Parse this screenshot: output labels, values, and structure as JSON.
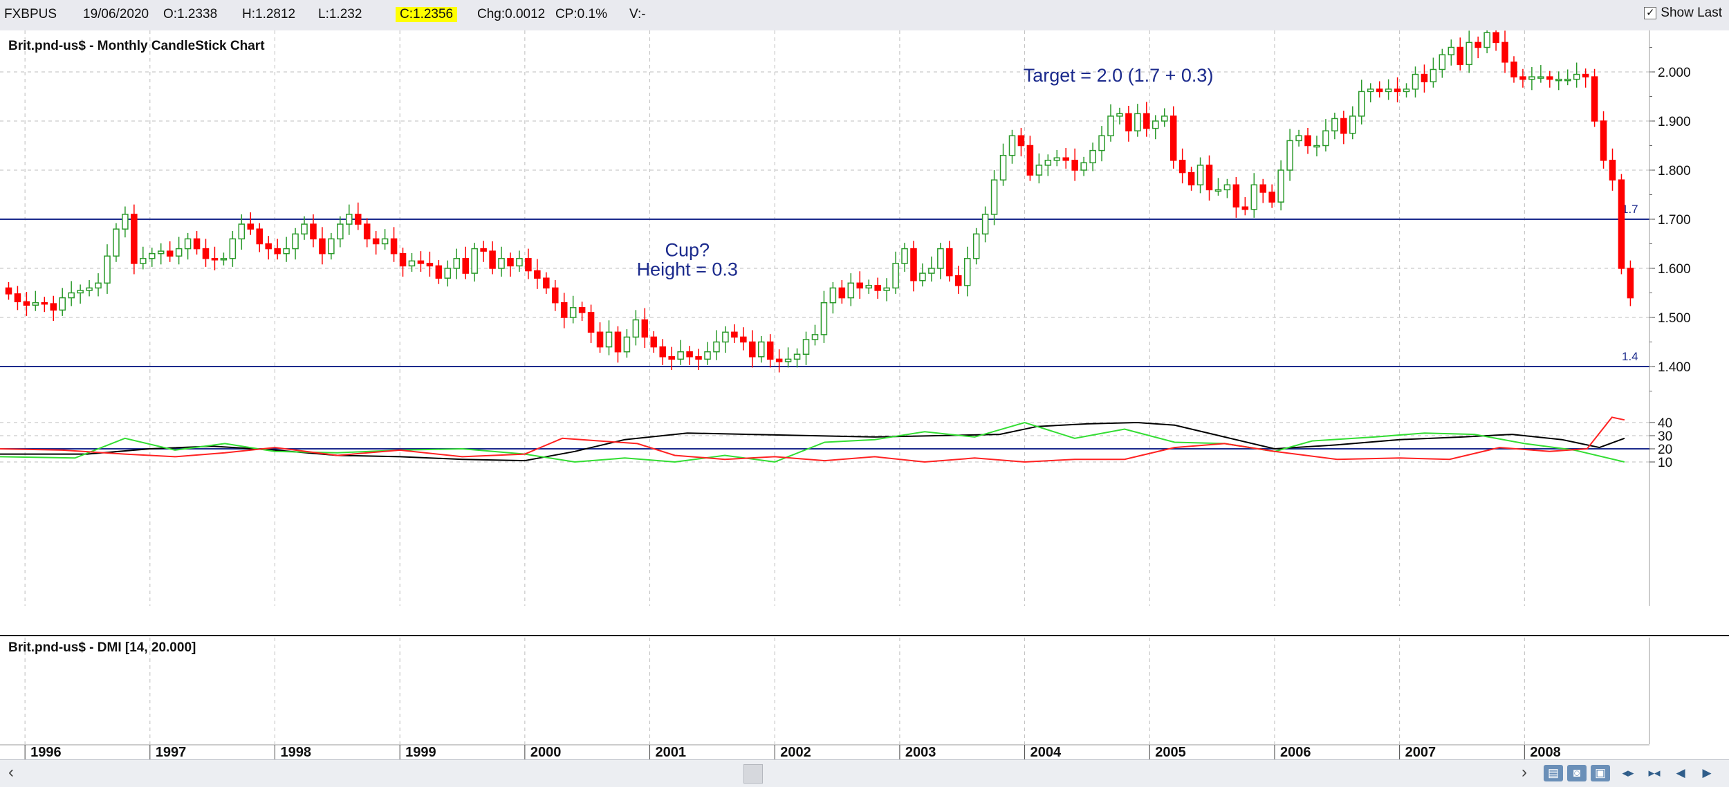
{
  "infobar": {
    "symbol": "FXBPUS",
    "date": "19/06/2020",
    "open": "O:1.2338",
    "high": "H:1.2812",
    "low": "L:1.232",
    "close": "C:1.2356",
    "change": "Chg:0.0012",
    "change_pct": "CP:0.1%",
    "volume": "V:-",
    "show_last_label": "Show Last",
    "show_last_checked": "✓"
  },
  "colors": {
    "up": "#2b9a2b",
    "down": "#ff0000",
    "annotation": "#1b2a8c",
    "adx": "#000000",
    "plus_di": "#33dd33",
    "minus_di": "#ff2222",
    "background": "#ffffff"
  },
  "chart_data": [
    {
      "type": "candlestick",
      "title": "Brit.pnd-us$ - Monthly CandleStick Chart",
      "ylim": [
        1.33,
        2.1
      ],
      "yticks": [
        "2.000",
        "1.900",
        "1.800",
        "1.700",
        "1.600",
        "1.500",
        "1.400"
      ],
      "ytick_values": [
        2.0,
        1.9,
        1.8,
        1.7,
        1.6,
        1.5,
        1.4
      ],
      "x_labels": [
        "1996",
        "1997",
        "1998",
        "1999",
        "2000",
        "2001",
        "2002",
        "2003",
        "2004",
        "2005",
        "2006",
        "2007",
        "2008"
      ],
      "x_start": 1995.8,
      "x_end": 2009.0,
      "horizontal_lines": [
        {
          "value": 1.7,
          "label": "1.7"
        },
        {
          "value": 1.4,
          "label": "1.4"
        }
      ],
      "annotations": [
        {
          "text": "Cup?",
          "x": 2001.3,
          "y": 1.625
        },
        {
          "text": "Height = 0.3",
          "x": 2001.3,
          "y": 1.585
        },
        {
          "text": "Target = 2.0 (1.7 + 0.3)",
          "x": 2004.75,
          "y": 1.98
        }
      ],
      "close_values": [
        1.548,
        1.532,
        1.525,
        1.53,
        1.528,
        1.515,
        1.54,
        1.55,
        1.555,
        1.56,
        1.57,
        1.625,
        1.68,
        1.71,
        1.61,
        1.62,
        1.63,
        1.635,
        1.625,
        1.64,
        1.66,
        1.64,
        1.62,
        1.618,
        1.62,
        1.66,
        1.69,
        1.68,
        1.65,
        1.64,
        1.63,
        1.64,
        1.67,
        1.69,
        1.66,
        1.63,
        1.66,
        1.69,
        1.71,
        1.69,
        1.66,
        1.65,
        1.66,
        1.63,
        1.605,
        1.615,
        1.61,
        1.605,
        1.58,
        1.6,
        1.62,
        1.59,
        1.64,
        1.635,
        1.6,
        1.62,
        1.605,
        1.62,
        1.595,
        1.58,
        1.56,
        1.53,
        1.5,
        1.52,
        1.51,
        1.47,
        1.44,
        1.47,
        1.43,
        1.46,
        1.495,
        1.46,
        1.44,
        1.42,
        1.415,
        1.43,
        1.42,
        1.415,
        1.43,
        1.45,
        1.47,
        1.46,
        1.45,
        1.42,
        1.45,
        1.415,
        1.41,
        1.415,
        1.425,
        1.455,
        1.465,
        1.53,
        1.56,
        1.54,
        1.57,
        1.56,
        1.565,
        1.555,
        1.56,
        1.61,
        1.64,
        1.575,
        1.59,
        1.6,
        1.64,
        1.585,
        1.565,
        1.62,
        1.67,
        1.71,
        1.78,
        1.83,
        1.87,
        1.85,
        1.79,
        1.81,
        1.82,
        1.825,
        1.82,
        1.8,
        1.815,
        1.84,
        1.87,
        1.91,
        1.915,
        1.88,
        1.915,
        1.885,
        1.9,
        1.91,
        1.82,
        1.795,
        1.77,
        1.81,
        1.76,
        1.76,
        1.77,
        1.725,
        1.72,
        1.77,
        1.755,
        1.735,
        1.8,
        1.86,
        1.87,
        1.85,
        1.85,
        1.88,
        1.905,
        1.875,
        1.91,
        1.96,
        1.965,
        1.96,
        1.965,
        1.96,
        1.965,
        1.995,
        1.98,
        2.005,
        2.035,
        2.05,
        2.015,
        2.06,
        2.05,
        2.08,
        2.06,
        2.02,
        1.99,
        1.985,
        1.99,
        1.99,
        1.985,
        1.985,
        1.985,
        1.995,
        1.99,
        1.9,
        1.82,
        1.78,
        1.6,
        1.54
      ]
    },
    {
      "type": "line",
      "title": "Brit.pnd-us$ - DMI [14, 20.000]",
      "ylim": [
        6,
        46
      ],
      "yticks": [
        "40",
        "30",
        "20",
        "10"
      ],
      "ytick_values": [
        40,
        30,
        20,
        10
      ],
      "threshold": 20,
      "x_start": 1995.8,
      "x_end": 2009.0,
      "series": [
        {
          "key": "adx",
          "x": [
            1995.8,
            1996.5,
            1997.0,
            1997.5,
            1998.0,
            1998.5,
            1999.0,
            1999.5,
            2000.0,
            2000.4,
            2000.8,
            2001.3,
            2001.8,
            2002.3,
            2002.8,
            2003.3,
            2003.8,
            2004.1,
            2004.5,
            2004.9,
            2005.2,
            2005.6,
            2006.0,
            2006.5,
            2007.0,
            2007.5,
            2007.9,
            2008.3,
            2008.6,
            2008.8
          ],
          "values": [
            16,
            16,
            20,
            22,
            19,
            15,
            14,
            12,
            11,
            18,
            27,
            32,
            31,
            30,
            29,
            30,
            31,
            37,
            39,
            40,
            38,
            29,
            20,
            23,
            27,
            29,
            31,
            27,
            21,
            28
          ]
        },
        {
          "key": "plus_di",
          "x": [
            1995.8,
            1996.4,
            1996.8,
            1997.2,
            1997.6,
            1998.0,
            1998.5,
            1999.0,
            1999.5,
            2000.0,
            2000.4,
            2000.8,
            2001.2,
            2001.6,
            2002.0,
            2002.4,
            2002.8,
            2003.2,
            2003.6,
            2004.0,
            2004.4,
            2004.8,
            2005.2,
            2005.6,
            2006.0,
            2006.3,
            2006.8,
            2007.2,
            2007.6,
            2008.0,
            2008.4,
            2008.8
          ],
          "values": [
            14,
            13,
            28,
            19,
            24,
            18,
            17,
            19,
            20,
            16,
            10,
            13,
            10,
            15,
            10,
            25,
            27,
            33,
            29,
            40,
            28,
            35,
            25,
            24,
            18,
            26,
            29,
            32,
            31,
            24,
            19,
            10
          ]
        },
        {
          "key": "minus_di",
          "x": [
            1995.8,
            1996.3,
            1996.8,
            1997.2,
            1997.6,
            1998.0,
            1998.5,
            1999.0,
            1999.5,
            2000.0,
            2000.3,
            2000.6,
            2000.9,
            2001.2,
            2001.6,
            2002.0,
            2002.4,
            2002.8,
            2003.2,
            2003.6,
            2004.0,
            2004.4,
            2004.8,
            2005.2,
            2005.6,
            2006.0,
            2006.5,
            2007.0,
            2007.4,
            2007.8,
            2008.2,
            2008.5,
            2008.7,
            2008.8
          ],
          "values": [
            20,
            19,
            16,
            14,
            17,
            21,
            15,
            19,
            14,
            16,
            28,
            26,
            24,
            15,
            12,
            14,
            11,
            14,
            10,
            13,
            10,
            12,
            12,
            21,
            24,
            18,
            12,
            13,
            12,
            21,
            18,
            20,
            44,
            42
          ]
        }
      ]
    }
  ]
}
